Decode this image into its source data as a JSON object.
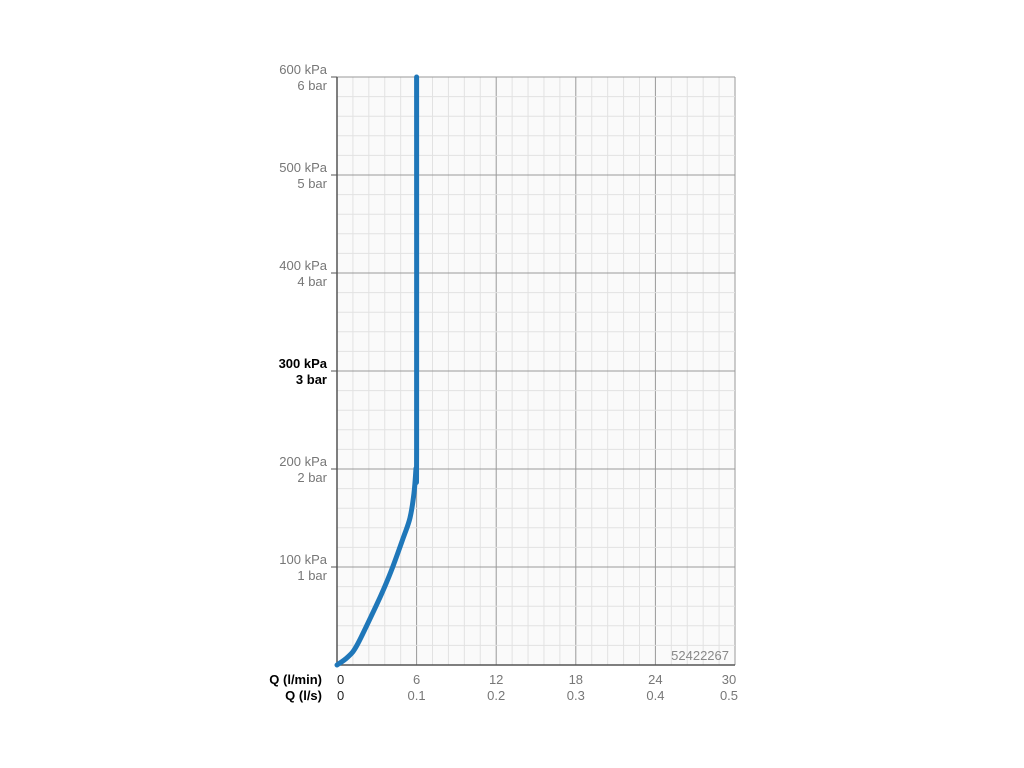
{
  "chart_data": {
    "type": "line",
    "title": "",
    "watermark_id": "52422267",
    "x_axes": [
      {
        "label": "Q (l/min)",
        "ticks": [
          "0",
          "6",
          "12",
          "18",
          "24",
          "30"
        ],
        "range": [
          0,
          30
        ]
      },
      {
        "label": "Q (l/s)",
        "ticks": [
          "0",
          "0.1",
          "0.2",
          "0.3",
          "0.4",
          "0.5"
        ],
        "range": [
          0,
          0.5
        ]
      }
    ],
    "y_axis": {
      "range": [
        0,
        600
      ],
      "unit": "kPa",
      "ticks": [
        {
          "value": 100,
          "kpa": "100 kPa",
          "bar": "1 bar",
          "bold": false
        },
        {
          "value": 200,
          "kpa": "200 kPa",
          "bar": "2 bar",
          "bold": false
        },
        {
          "value": 300,
          "kpa": "300 kPa",
          "bar": "3 bar",
          "bold": true
        },
        {
          "value": 400,
          "kpa": "400 kPa",
          "bar": "4 bar",
          "bold": false
        },
        {
          "value": 500,
          "kpa": "500 kPa",
          "bar": "5 bar",
          "bold": false
        },
        {
          "value": 600,
          "kpa": "600 kPa",
          "bar": "6 bar",
          "bold": false
        }
      ]
    },
    "grid": true,
    "series": [
      {
        "color": "#1f77b9",
        "x": [
          0,
          0.8,
          1.5,
          2.9,
          3.6,
          4.2,
          5.0,
          5.5,
          5.8,
          5.95,
          6.0,
          6.0
        ],
        "y": [
          0,
          8,
          20,
          59,
          80,
          100,
          130,
          150,
          175,
          200,
          220,
          600
        ]
      }
    ]
  }
}
